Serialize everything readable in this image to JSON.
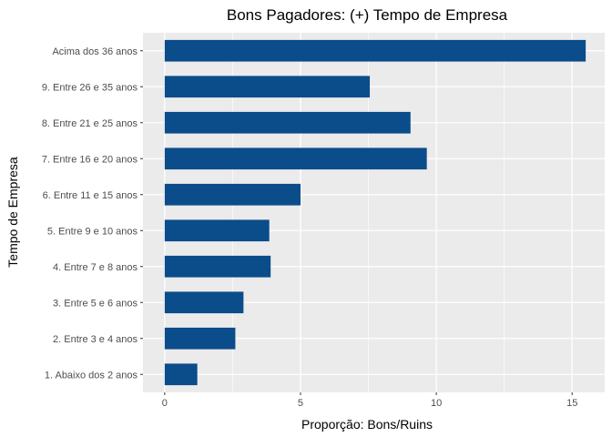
{
  "chart_data": {
    "type": "bar",
    "orientation": "horizontal",
    "title": "Bons Pagadores: (+) Tempo de Empresa",
    "xlabel": "Proporção: Bons/Ruins",
    "ylabel": "Tempo de Empresa",
    "categories": [
      "1. Abaixo dos 2 anos",
      "2. Entre 3 e 4 anos",
      "3. Entre 5 e 6 anos",
      "4. Entre 7 e 8 anos",
      "5. Entre 9 e 10 anos",
      "6. Entre 11 e 15 anos",
      "7. Entre 16 e 20 anos",
      "8. Entre 21 e 25 anos",
      "9. Entre 26 e 35 anos",
      "Acima dos 36 anos"
    ],
    "values": [
      1.2,
      2.6,
      2.9,
      3.9,
      3.85,
      5.0,
      9.65,
      9.05,
      7.55,
      15.5
    ],
    "xlim": [
      -0.8,
      16.2
    ],
    "x_ticks": [
      0,
      5,
      10,
      15
    ],
    "x_tick_labels": [
      "0",
      "5",
      "10",
      "15"
    ],
    "grid": true,
    "bar_color": "#0b4c8a",
    "panel_color": "#ebebeb",
    "grid_color": "#ffffff"
  }
}
